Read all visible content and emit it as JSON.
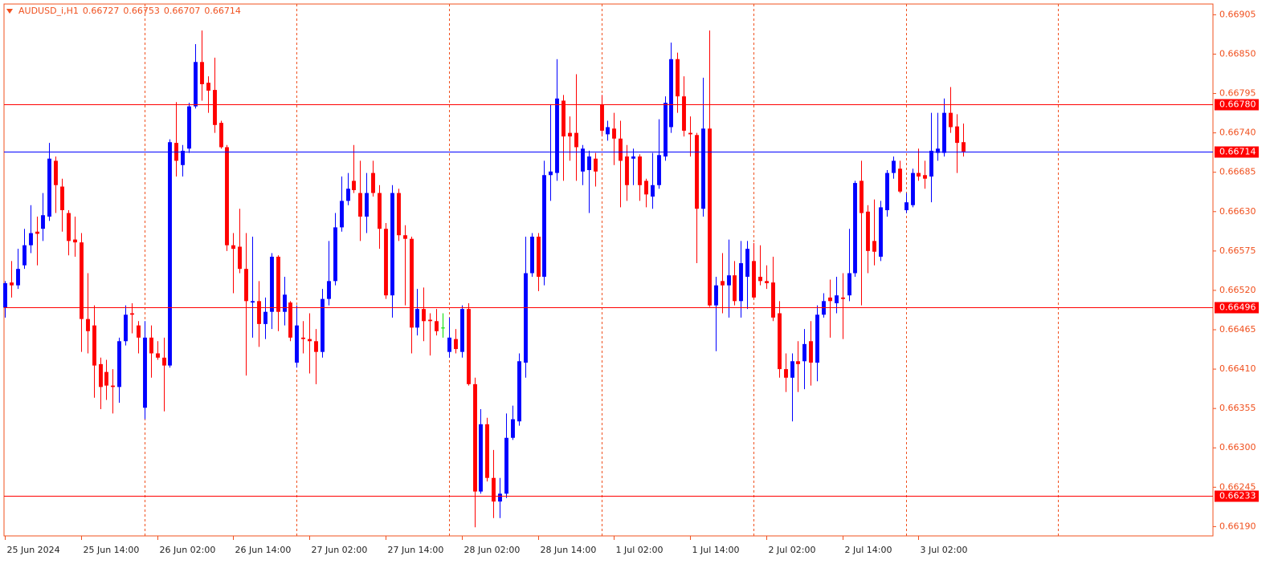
{
  "chart_data": {
    "type": "candlestick",
    "title": "AUDUSD_i,H1",
    "up_color": "#0000ff",
    "down_color": "#ff0000",
    "doji_color": "#00e000",
    "axis_color": "#f0501e",
    "ylim": [
      0.66177,
      0.6692
    ],
    "yticks": [
      0.66905,
      {
        "value": 0.6685,
        "label": "0.66850"
      },
      0.66795,
      {
        "value": 0.6674,
        "label": "0.66740"
      },
      0.66685,
      {
        "value": 0.6663,
        "label": "0.66630"
      },
      0.66575,
      {
        "value": 0.6652,
        "label": "0.66520"
      },
      0.66465,
      {
        "value": 0.6641,
        "label": "0.66410"
      },
      0.66355,
      {
        "value": 0.663,
        "label": "0.66300"
      },
      0.66245,
      {
        "value": 0.6619,
        "label": "0.66190"
      }
    ],
    "xlim": [
      -0.13,
      190.4
    ],
    "xticks": [
      {
        "value": 0,
        "label": "25 Jun 2024"
      },
      {
        "value": 12,
        "label": "25 Jun 14:00"
      },
      {
        "value": 24,
        "label": "26 Jun 02:00"
      },
      {
        "value": 36,
        "label": "26 Jun 14:00"
      },
      {
        "value": 48,
        "label": "27 Jun 02:00"
      },
      {
        "value": 60,
        "label": "27 Jun 14:00"
      },
      {
        "value": 72,
        "label": "28 Jun 02:00"
      },
      {
        "value": 84,
        "label": "28 Jun 14:00"
      },
      {
        "value": 96,
        "label": "1 Jul 02:00"
      },
      {
        "value": 108,
        "label": "1 Jul 14:00"
      },
      {
        "value": 120,
        "label": "2 Jul 02:00"
      },
      {
        "value": 132,
        "label": "2 Jul 14:00"
      },
      {
        "value": 144,
        "label": "3 Jul 02:00"
      }
    ],
    "day_separators": [
      22,
      46,
      70,
      94,
      118,
      142,
      166
    ],
    "hlines": [
      {
        "value": {
          "value": 0.6678,
          "label": "0.66780"
        },
        "color": "#ff0000",
        "box_color": "#ff0000"
      },
      {
        "value": 0.66714,
        "color": "#0000ff",
        "box_color": "#ff0000"
      },
      {
        "value": 0.66496,
        "color": "#ff0000",
        "box_color": "#ff0000"
      },
      {
        "value": 0.66233,
        "color": "#ff0000",
        "box_color": "#ff0000"
      }
    ],
    "open": [
      0.66496,
      0.66531,
      0.66527,
      0.66555,
      0.66583,
      0.66602,
      0.66606,
      0.66623,
      0.66701,
      0.66665,
      0.66628,
      0.66591,
      0.66587,
      0.6648,
      0.66471,
      0.66417,
      0.66406,
      0.66387,
      0.66385,
      0.66449,
      0.66488,
      0.66471,
      0.66356,
      0.66454,
      0.66432,
      0.66426,
      0.66415,
      0.66726,
      0.66695,
      0.66718,
      0.66777,
      0.66839,
      0.6681,
      0.668,
      0.66754,
      0.6672,
      0.66583,
      0.66581,
      0.6655,
      0.66503,
      0.66505,
      0.66473,
      0.6649,
      0.66567,
      0.6649,
      0.66503,
      0.66419,
      0.66454,
      0.66452,
      0.66449,
      0.66434,
      0.66508,
      0.66533,
      0.66608,
      0.66645,
      0.66673,
      0.66656,
      0.66623,
      0.66684,
      0.66656,
      0.66606,
      0.66513,
      0.66656,
      0.66597,
      0.66592,
      0.66468,
      0.66494,
      0.66479,
      0.66477,
      0.66468,
      0.66434,
      0.66452,
      0.66434,
      0.66494,
      0.66389,
      0.66239,
      0.66333,
      0.66258,
      0.66225,
      0.66236,
      0.66314,
      0.66337,
      0.66419,
      0.66544,
      0.66595,
      0.66539,
      0.66681,
      0.66684,
      0.66785,
      0.6674,
      0.6674,
      0.66686,
      0.66688,
      0.66704,
      0.6678,
      0.66738,
      0.66746,
      0.66732,
      0.66707,
      0.66704,
      0.66707,
      0.66673,
      0.66651,
      0.66667,
      0.66707,
      0.66748,
      0.66843,
      0.66791,
      0.6674,
      0.66737,
      0.66634,
      0.66746,
      0.66499,
      0.66533,
      0.66527,
      0.66541,
      0.66505,
      0.66539,
      0.66561,
      0.66539,
      0.66533,
      0.66531,
      0.66488,
      0.6641,
      0.66398,
      0.66421,
      0.66421,
      0.66449,
      0.66419,
      0.66486,
      0.6651,
      0.66502,
      0.6651,
      0.66513,
      0.66544,
      0.66673,
      0.6663,
      0.66589,
      0.66567,
      0.66632,
      0.66684,
      0.6669,
      0.66632,
      0.66639,
      0.66684,
      0.66681,
      0.66679,
      0.66712,
      0.66712,
      0.66768,
      0.66749,
      0.66727
    ],
    "high": [
      0.66533,
      0.66561,
      0.66578,
      0.66606,
      0.66639,
      0.66623,
      0.66656,
      0.66726,
      0.66707,
      0.66676,
      0.66632,
      0.66623,
      0.666,
      0.66544,
      0.66499,
      0.66426,
      0.66423,
      0.6641,
      0.66454,
      0.66499,
      0.66502,
      0.66477,
      0.66477,
      0.66471,
      0.66449,
      0.66454,
      0.66731,
      0.66783,
      0.66723,
      0.66782,
      0.66864,
      0.66883,
      0.66819,
      0.66845,
      0.66757,
      0.66723,
      0.666,
      0.66634,
      0.666,
      0.66595,
      0.66533,
      0.6651,
      0.66572,
      0.66569,
      0.66539,
      0.66505,
      0.66499,
      0.66477,
      0.66488,
      0.66466,
      0.66522,
      0.66589,
      0.66628,
      0.66679,
      0.66684,
      0.66723,
      0.66701,
      0.66684,
      0.66701,
      0.66667,
      0.66614,
      0.66667,
      0.66662,
      0.66611,
      0.66595,
      0.66522,
      0.66524,
      0.66488,
      0.66494,
      0.66488,
      0.66482,
      0.66466,
      0.66499,
      0.66502,
      0.66398,
      0.66354,
      0.66342,
      0.66297,
      0.66258,
      0.66348,
      0.66359,
      0.66432,
      0.66595,
      0.666,
      0.666,
      0.66701,
      0.6678,
      0.66843,
      0.66793,
      0.66763,
      0.66822,
      0.66723,
      0.66715,
      0.66712,
      0.66793,
      0.66757,
      0.66768,
      0.66757,
      0.66723,
      0.66718,
      0.6671,
      0.66676,
      0.66712,
      0.66759,
      0.66791,
      0.66866,
      0.66852,
      0.66819,
      0.66763,
      0.6674,
      0.66817,
      0.66883,
      0.66539,
      0.66572,
      0.66591,
      0.66561,
      0.66589,
      0.66589,
      0.66586,
      0.66583,
      0.66555,
      0.66567,
      0.66505,
      0.66432,
      0.66432,
      0.66449,
      0.66466,
      0.66477,
      0.66499,
      0.66516,
      0.66535,
      0.66539,
      0.66544,
      0.66606,
      0.66673,
      0.66701,
      0.66639,
      0.66647,
      0.66645,
      0.66688,
      0.66707,
      0.66701,
      0.66656,
      0.6669,
      0.66718,
      0.66701,
      0.66768,
      0.66768,
      0.66788,
      0.66804,
      0.66766,
      0.66753
    ],
    "low": [
      0.66482,
      0.6651,
      0.66522,
      0.6655,
      0.66572,
      0.66555,
      0.66589,
      0.66617,
      0.66628,
      0.66602,
      0.66569,
      0.66567,
      0.66434,
      0.66432,
      0.6637,
      0.66354,
      0.66367,
      0.66348,
      0.66363,
      0.66443,
      0.6646,
      0.66432,
      0.6634,
      0.66398,
      0.66423,
      0.66351,
      0.66412,
      0.66679,
      0.66679,
      0.66712,
      0.66774,
      0.66785,
      0.66768,
      0.6674,
      0.66718,
      0.66575,
      0.66516,
      0.66544,
      0.66401,
      0.66454,
      0.66441,
      0.66452,
      0.66466,
      0.66463,
      0.66471,
      0.66449,
      0.66412,
      0.66432,
      0.66404,
      0.66389,
      0.66426,
      0.66499,
      0.66527,
      0.66602,
      0.66639,
      0.66656,
      0.66589,
      0.666,
      0.66651,
      0.66578,
      0.66508,
      0.66482,
      0.66589,
      0.66499,
      0.66432,
      0.66457,
      0.66449,
      0.66429,
      0.66457,
      0.66454,
      0.66426,
      0.66432,
      0.66426,
      0.66387,
      0.66189,
      0.66236,
      0.66253,
      0.66202,
      0.66202,
      0.6623,
      0.66311,
      0.66331,
      0.66398,
      0.66539,
      0.66519,
      0.66527,
      0.66645,
      0.66673,
      0.66673,
      0.66701,
      0.66673,
      0.66667,
      0.66628,
      0.66665,
      0.66735,
      0.66729,
      0.66695,
      0.66636,
      0.66645,
      0.66667,
      0.66645,
      0.66636,
      0.66634,
      0.66662,
      0.66701,
      0.6674,
      0.66768,
      0.66735,
      0.66707,
      0.66558,
      0.66623,
      0.66497,
      0.66435,
      0.66488,
      0.66482,
      0.66499,
      0.66482,
      0.66494,
      0.66508,
      0.66527,
      0.66522,
      0.66477,
      0.66398,
      0.66378,
      0.66337,
      0.66378,
      0.66382,
      0.66387,
      0.66393,
      0.66482,
      0.66454,
      0.66488,
      0.66452,
      0.66505,
      0.66539,
      0.66499,
      0.66544,
      0.66555,
      0.66561,
      0.66623,
      0.66676,
      0.66656,
      0.66628,
      0.66636,
      0.66673,
      0.66662,
      0.66643,
      0.66701,
      0.66707,
      0.6674,
      0.66684,
      0.66707
    ],
    "close": [
      0.6653,
      0.66527,
      0.6655,
      0.66583,
      0.666,
      0.66599,
      0.66625,
      0.66704,
      0.66667,
      0.66632,
      0.66589,
      0.66587,
      0.6648,
      0.66463,
      0.66415,
      0.66385,
      0.66387,
      0.66385,
      0.66449,
      0.66486,
      0.66486,
      0.66454,
      0.66454,
      0.66432,
      0.66426,
      0.66415,
      0.66727,
      0.66701,
      0.66715,
      0.66777,
      0.66839,
      0.66808,
      0.66799,
      0.66751,
      0.6672,
      0.66583,
      0.66578,
      0.6655,
      0.66505,
      0.66505,
      0.66473,
      0.6649,
      0.66567,
      0.6649,
      0.66514,
      0.66454,
      0.66471,
      0.66452,
      0.66449,
      0.66434,
      0.66508,
      0.66533,
      0.66608,
      0.66645,
      0.66662,
      0.6666,
      0.66623,
      0.66656,
      0.66656,
      0.66606,
      0.66513,
      0.66656,
      0.66597,
      0.66592,
      0.66468,
      0.66494,
      0.66477,
      0.66477,
      0.66463,
      0.66468,
      0.66454,
      0.66438,
      0.66494,
      0.66389,
      0.66239,
      0.66333,
      0.66258,
      0.66225,
      0.66236,
      0.66314,
      0.6634,
      0.66421,
      0.66544,
      0.66595,
      0.66539,
      0.66681,
      0.66686,
      0.66788,
      0.66735,
      0.66735,
      0.6672,
      0.66718,
      0.66707,
      0.66686,
      0.66743,
      0.66748,
      0.66732,
      0.66701,
      0.66667,
      0.66707,
      0.66667,
      0.66654,
      0.66667,
      0.66709,
      0.66782,
      0.66843,
      0.66791,
      0.66743,
      0.66738,
      0.66634,
      0.66746,
      0.66499,
      0.66527,
      0.66527,
      0.66541,
      0.66505,
      0.66558,
      0.66578,
      0.6651,
      0.66533,
      0.6653,
      0.66482,
      0.6641,
      0.66398,
      0.66421,
      0.66417,
      0.66445,
      0.66419,
      0.66486,
      0.66505,
      0.66505,
      0.66513,
      0.66508,
      0.66544,
      0.6667,
      0.66628,
      0.66575,
      0.66574,
      0.66636,
      0.66684,
      0.66701,
      0.66658,
      0.66643,
      0.66684,
      0.66679,
      0.66676,
      0.66715,
      0.66718,
      0.66768,
      0.66748,
      0.66726,
      0.66714
    ]
  }
}
